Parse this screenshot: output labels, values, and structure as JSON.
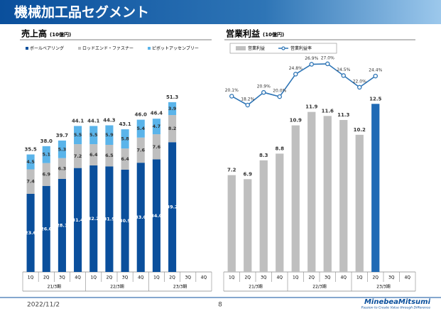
{
  "header": {
    "title": "機械加工品セグメント"
  },
  "chart_data": [
    {
      "type": "bar",
      "stacked": true,
      "title": "売上高",
      "subtitle": "(10億円)",
      "categories": [
        "1Q",
        "2Q",
        "3Q",
        "4Q",
        "1Q",
        "2Q",
        "3Q",
        "4Q",
        "1Q",
        "2Q",
        "3Q",
        "4Q"
      ],
      "groups": [
        "21/3期",
        "22/3期",
        "23/3期"
      ],
      "ylim": [
        0,
        65
      ],
      "series": [
        {
          "name": "ボールベアリング",
          "color": "#0a4f9c",
          "values": [
            23.6,
            26.0,
            28.1,
            31.4,
            32.2,
            31.9,
            30.9,
            33.0,
            34.0,
            39.2,
            null,
            null
          ],
          "value_labels": [
            "23.6",
            "26.0",
            "28.1",
            "31.4",
            "32.2",
            "31.9",
            "30.9",
            "33.0",
            "34.0",
            "39.2",
            null,
            null
          ]
        },
        {
          "name": "ロッドエンド・ファスナー",
          "color": "#bfbfbf",
          "values": [
            7.4,
            6.9,
            6.3,
            7.2,
            6.4,
            6.5,
            6.4,
            7.6,
            7.6,
            8.2,
            null,
            null
          ],
          "value_labels": [
            "7.4",
            "6.9",
            "6.3",
            "7.2",
            "6.4",
            "6.5",
            "6.4",
            "7.6",
            "7.6",
            "8.2",
            null,
            null
          ]
        },
        {
          "name": "ピボットアッセンブリー",
          "color": "#5ab4ea",
          "values": [
            4.5,
            5.1,
            5.3,
            5.5,
            5.5,
            5.9,
            5.8,
            5.4,
            4.7,
            3.9,
            null,
            null
          ],
          "value_labels": [
            "4.5",
            "5.1",
            "5.3",
            "5.5",
            "5.5",
            "5.9",
            "5.8",
            "5.4",
            "4.7",
            "3.9",
            null,
            null
          ]
        }
      ],
      "totals": [
        35.5,
        38.0,
        39.7,
        44.1,
        44.1,
        44.3,
        43.1,
        46.0,
        46.4,
        51.3,
        null,
        null
      ],
      "total_labels": [
        "35.5",
        "38.0",
        "39.7",
        "44.1",
        "44.1",
        "44.3",
        "43.1",
        "46.0",
        "46.4",
        "51.3",
        null,
        null
      ]
    },
    {
      "type": "bar",
      "stacked": false,
      "title": "営業利益",
      "subtitle": "(10億円)",
      "categories": [
        "1Q",
        "2Q",
        "3Q",
        "4Q",
        "1Q",
        "2Q",
        "3Q",
        "4Q",
        "1Q",
        "2Q",
        "3Q",
        "4Q"
      ],
      "groups": [
        "21/3期",
        "22/3期",
        "23/3期"
      ],
      "ylim": [
        0,
        16
      ],
      "y2lim": [
        -17.4,
        28.5
      ],
      "series": [
        {
          "name": "営業利益",
          "color": "#bfbfbf",
          "colors": [
            "#bfbfbf",
            "#bfbfbf",
            "#bfbfbf",
            "#bfbfbf",
            "#bfbfbf",
            "#bfbfbf",
            "#bfbfbf",
            "#bfbfbf",
            "#bfbfbf",
            "#1f6ab5",
            null,
            null
          ],
          "values": [
            7.2,
            6.9,
            8.3,
            8.8,
            10.9,
            11.9,
            11.6,
            11.3,
            10.2,
            12.5,
            null,
            null
          ]
        },
        {
          "name": "営業利益率",
          "type": "line",
          "axis": "y2",
          "color": "#2e75b6",
          "values": [
            20.1,
            18.2,
            20.9,
            20.0,
            24.8,
            26.9,
            27.0,
            24.5,
            22.0,
            24.4,
            null,
            null
          ],
          "value_labels": [
            "20.1%",
            "18.2%",
            "20.9%",
            "20.0%",
            "24.8%",
            "26.9%",
            "27.0%",
            "24.5%",
            "22.0%",
            "24.4%",
            null,
            null
          ]
        }
      ]
    }
  ],
  "footer": {
    "date": "2022/11/2",
    "page": "8",
    "logo": "MinebeaMitsumi",
    "tagline": "Passion to Create Value through Difference"
  }
}
